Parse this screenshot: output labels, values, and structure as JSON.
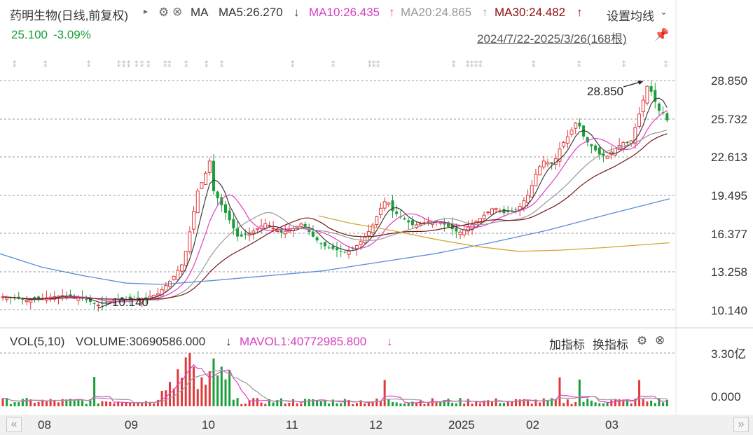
{
  "header": {
    "stock_title": "药明生物(日线,前复权)",
    "indicator": "MA",
    "ma5_label": "MA5:26.270",
    "ma5_arrow": "↓",
    "ma10_label": "MA10:26.435",
    "ma10_arrow": "↑",
    "ma20_label": "MA20:24.865",
    "ma20_arrow": "↑",
    "ma30_label": "MA30:24.482",
    "ma30_arrow": "↑",
    "settings_label": "设置均线",
    "price": "25.100",
    "change": "-3.09%",
    "date_range": "2024/7/22-2025/3/26(168根)"
  },
  "colors": {
    "up": "#e0393b",
    "down": "#1a9e3a",
    "ma5": "#3c3c3c",
    "ma10": "#e23ec8",
    "ma20": "#9a9a9a",
    "ma30": "#7a1414",
    "ma_long_blue": "#5b8fd6",
    "ma_long_gold": "#d4a637"
  },
  "volume_header": {
    "title": "VOL(5,10)",
    "volume": "VOLUME:30690586.000",
    "volume_arrow": "↓",
    "mavol1": "MAVOL1:40772985.800",
    "mavol1_arrow": "↓",
    "add_indicator": "加指标",
    "switch_indicator": "换指标"
  },
  "price_axis": [
    "28.850",
    "25.732",
    "22.613",
    "19.495",
    "16.377",
    "13.258",
    "10.140"
  ],
  "volume_axis": [
    "3.30亿",
    "0.000"
  ],
  "annotations": {
    "high": "28.850",
    "low": "10.140"
  },
  "time_axis": [
    "08",
    "09",
    "10",
    "11",
    "12",
    "2025",
    "02",
    "03"
  ],
  "scroll": {
    "left": "«",
    "right": "»"
  }
}
